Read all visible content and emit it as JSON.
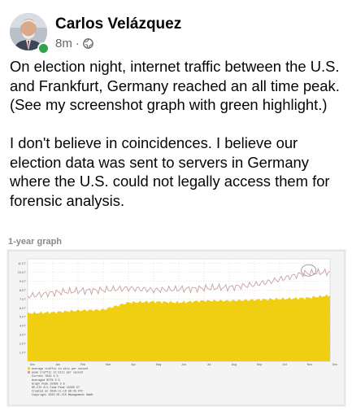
{
  "post": {
    "author": "Carlos Velázquez",
    "time": "8m",
    "separator": "·",
    "privacy_icon": "globe-icon",
    "paragraphs": [
      "On election  night, internet traffic between the U.S. and Frankfurt, Germany reached an all time peak. (See my screenshot graph with green highlight.)",
      "I don't believe in coincidences. I believe our election data was sent to servers in Germany where the U.S. could not legally access them for forensic analysis."
    ],
    "presence_color": "#31a24c"
  },
  "graph": {
    "title": "1-year graph",
    "colors": {
      "area": "#f0cf12",
      "peak_line": "#c9a0a0",
      "grid": "#e3c6c6"
    }
  },
  "chart_data": {
    "type": "area",
    "title": "",
    "xlabel": "",
    "ylabel": "",
    "y_ticks": [
      "1.0 T",
      "2.0 T",
      "3.0 T",
      "4.0 T",
      "5.0 T",
      "6.0 T",
      "7.0 T",
      "8.0 T",
      "9.0 T",
      "10.0 T",
      "11.0 T"
    ],
    "ylim": [
      0,
      11.5
    ],
    "x_ticks": [
      "Dec",
      "Jan",
      "Feb",
      "Mar",
      "Apr",
      "May",
      "Jun",
      "Jul",
      "Aug",
      "Sep",
      "Oct",
      "Nov",
      "Dec"
    ],
    "series": [
      {
        "name": "average traffic in bits per second",
        "values": [
          5.4,
          5.5,
          5.7,
          5.8,
          6.6,
          6.7,
          6.6,
          6.8,
          6.8,
          6.9,
          7.0,
          7.1,
          7.4
        ]
      },
      {
        "name": "peak traffic in bits per second",
        "values": [
          7.3,
          7.7,
          7.9,
          8.0,
          8.2,
          8.0,
          8.1,
          8.2,
          8.3,
          8.6,
          9.2,
          9.9,
          10.0
        ]
      }
    ],
    "legend_lines": [
      "average traffic in bits per second",
      "peak traffic in bits per second",
      "Current  7843 4 G",
      "Averaged 85T% 3 G",
      "Graph Peak 10305 5 G",
      "DE-CIX All-Time Peak 10305 5T",
      "Created at 2020-11-16 09:43 UTC",
      "Copyright 2020 DE-CIX Management GmbH"
    ]
  }
}
